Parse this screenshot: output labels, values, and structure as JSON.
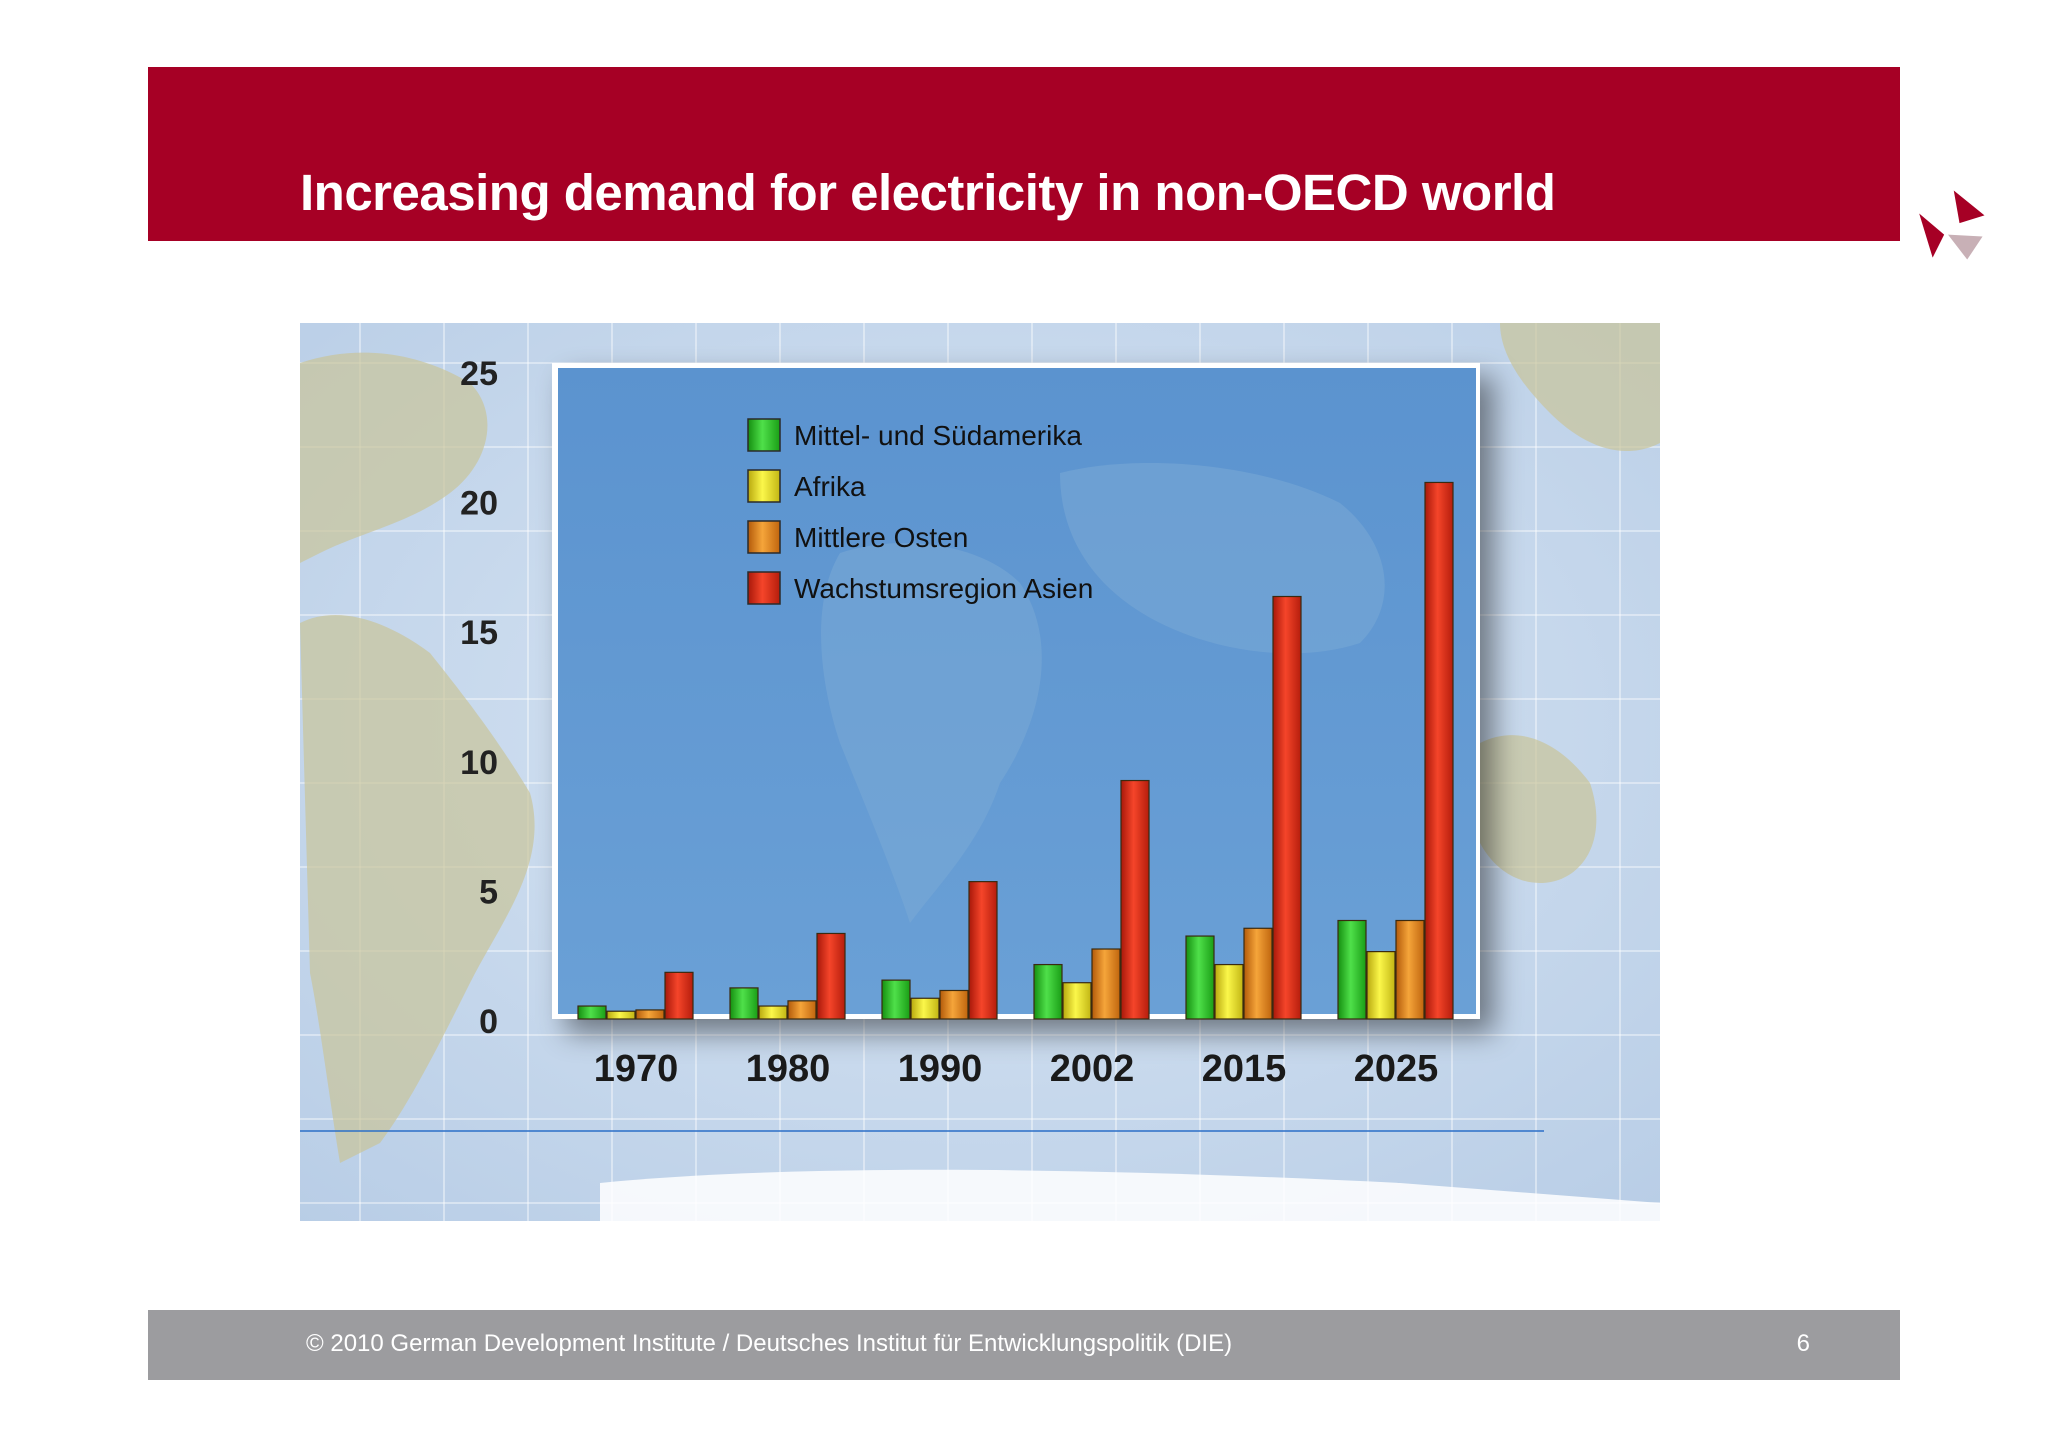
{
  "header": {
    "title": "Increasing demand for electricity in non-OECD world"
  },
  "colors": {
    "brand": "#a60025",
    "footer": "#9c9c9f",
    "plot_bg": "#5b93cf",
    "series": [
      "#2fc02a",
      "#e8e424",
      "#e8841c",
      "#dd2a12"
    ]
  },
  "chart_data": {
    "type": "bar",
    "categories": [
      "1970",
      "1980",
      "1990",
      "2002",
      "2015",
      "2025"
    ],
    "ylim": [
      0,
      25
    ],
    "yticks": [
      "0",
      "5",
      "10",
      "15",
      "20",
      "25"
    ],
    "series": [
      {
        "name": "Mittel- und Südamerika",
        "values": [
          0.5,
          1.2,
          1.5,
          2.1,
          3.2,
          3.8
        ]
      },
      {
        "name": "Afrika",
        "values": [
          0.3,
          0.5,
          0.8,
          1.4,
          2.1,
          2.6
        ]
      },
      {
        "name": "Mittlere Osten",
        "values": [
          0.35,
          0.7,
          1.1,
          2.7,
          3.5,
          3.8
        ]
      },
      {
        "name": "Wachstumsregion Asien",
        "values": [
          1.8,
          3.3,
          5.3,
          9.2,
          16.3,
          20.7
        ]
      }
    ],
    "title": "",
    "xlabel": "",
    "ylabel": ""
  },
  "footer": {
    "copyright": "© 2010  German Development Institute / Deutsches Institut für Entwicklungspolitik (DIE)",
    "page_number": "6"
  }
}
